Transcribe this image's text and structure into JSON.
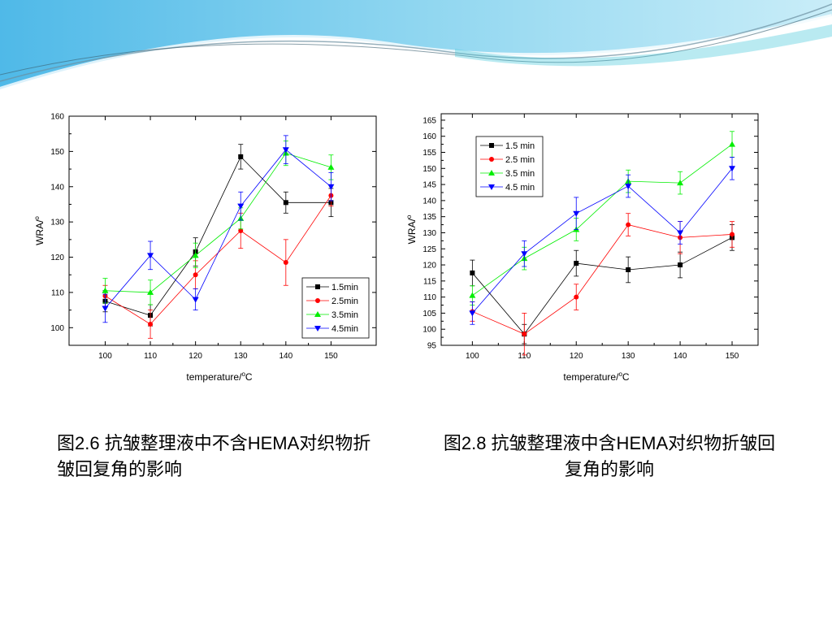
{
  "captions": {
    "left": "图2.6 抗皱整理液中不含HEMA对织物折皱回复角的影响",
    "right": "图2.8 抗皱整理液中含HEMA对织物折皱回复角的影响"
  },
  "colors": {
    "series": [
      "#000000",
      "#ff0000",
      "#00ee00",
      "#0000ff"
    ]
  },
  "chart_data": [
    {
      "type": "line",
      "xlabel": "temperature/",
      "xlabel_unit": "C",
      "ylabel": "WRA/",
      "x": [
        100,
        110,
        120,
        130,
        140,
        150
      ],
      "xlim": [
        92,
        160
      ],
      "ylim": [
        95,
        160
      ],
      "yticks": [
        100,
        110,
        120,
        130,
        140,
        150,
        160
      ],
      "legend_position": "bottom-right",
      "series": [
        {
          "name": "1.5min",
          "marker": "square",
          "values": [
            107.5,
            103.5,
            121.5,
            148.5,
            135.5,
            135.5
          ],
          "errors": [
            3,
            3,
            4,
            3.5,
            3,
            4
          ]
        },
        {
          "name": "2.5min",
          "marker": "circle",
          "values": [
            109,
            101,
            115,
            127.5,
            118.5,
            137.5
          ],
          "errors": [
            3,
            4,
            4,
            5,
            6.5,
            3
          ]
        },
        {
          "name": "3.5min",
          "marker": "triangle-up",
          "values": [
            110.5,
            110,
            120.5,
            131,
            149.5,
            145.5
          ],
          "errors": [
            3.5,
            3.5,
            3.5,
            3,
            3.5,
            3.5
          ]
        },
        {
          "name": "4.5min",
          "marker": "triangle-down",
          "values": [
            105.5,
            120.5,
            108,
            134.5,
            150.5,
            140
          ],
          "errors": [
            4,
            4,
            3,
            4,
            4,
            4
          ]
        }
      ]
    },
    {
      "type": "line",
      "xlabel": "temperature/",
      "xlabel_unit": "C",
      "ylabel": "WRA/",
      "x": [
        100,
        110,
        120,
        130,
        140,
        150
      ],
      "xlim": [
        94,
        155
      ],
      "ylim": [
        95,
        167
      ],
      "yticks": [
        95,
        100,
        105,
        110,
        115,
        120,
        125,
        130,
        135,
        140,
        145,
        150,
        155,
        160,
        165
      ],
      "legend_position": "top-left",
      "series": [
        {
          "name": "1.5 min",
          "marker": "square",
          "values": [
            117.5,
            98.5,
            120.5,
            118.5,
            120,
            128.5
          ],
          "errors": [
            4,
            3,
            4,
            4,
            4,
            4
          ]
        },
        {
          "name": "2.5 min",
          "marker": "circle",
          "values": [
            105.5,
            98.5,
            110,
            132.5,
            128.5,
            129.5
          ],
          "errors": [
            3,
            6.5,
            4,
            3.5,
            5,
            4
          ]
        },
        {
          "name": "3.5 min",
          "marker": "triangle-up",
          "values": [
            110.5,
            122,
            131,
            146,
            145.5,
            157.5
          ],
          "errors": [
            3,
            3.5,
            3.5,
            3.5,
            3.5,
            4
          ]
        },
        {
          "name": "4.5 min",
          "marker": "triangle-down",
          "values": [
            105,
            123.5,
            136,
            144.5,
            130,
            150
          ],
          "errors": [
            3.5,
            4,
            5,
            3.5,
            3.5,
            3.5
          ]
        }
      ]
    }
  ]
}
